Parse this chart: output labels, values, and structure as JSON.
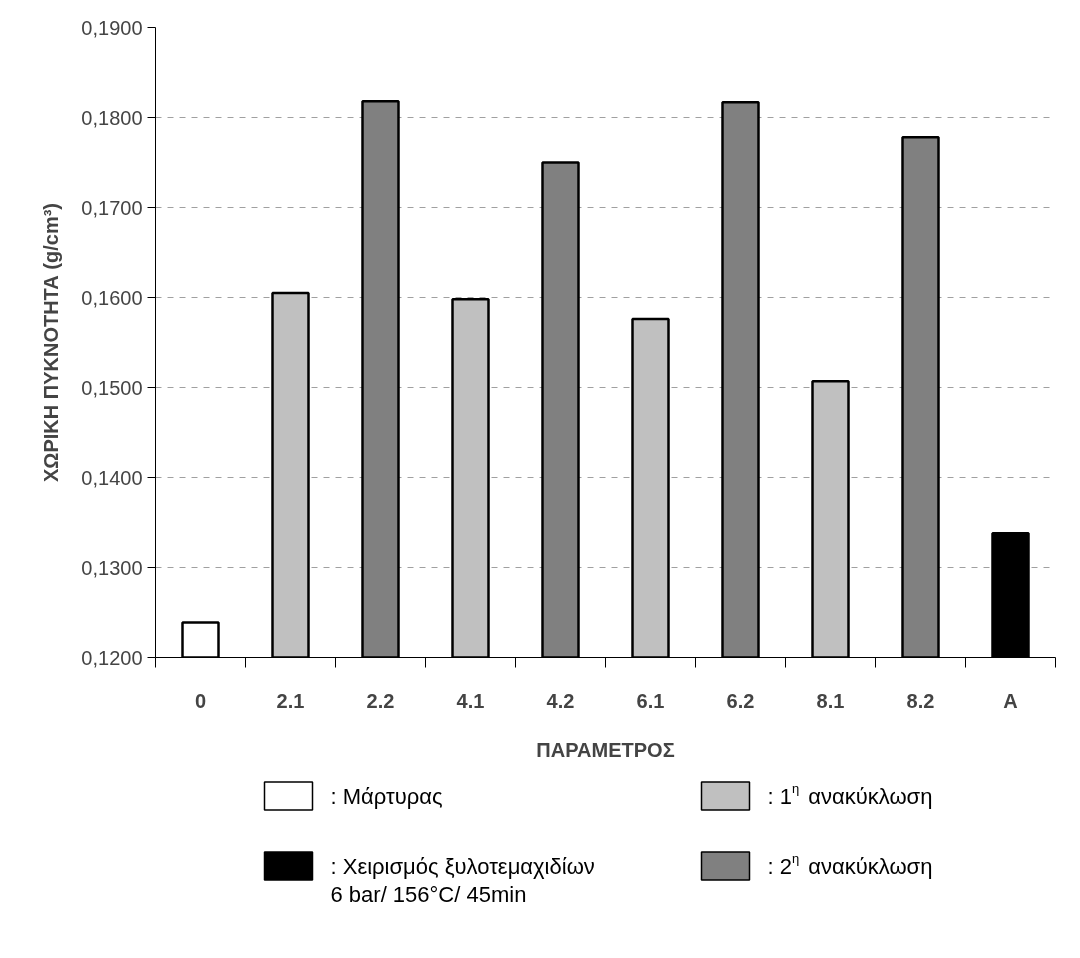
{
  "chart_data": {
    "type": "bar",
    "xlabel": "ΠΑΡΑΜΕΤΡΟΣ",
    "ylabel": "ΧΩΡΙΚΗ ΠΥΚΝΟΤΗΤΑ (g/cm³)",
    "categories": [
      "0",
      "2.1",
      "2.2",
      "4.1",
      "4.2",
      "6.1",
      "6.2",
      "8.1",
      "8.2",
      "A"
    ],
    "series": [
      {
        "name": ": Μάρτυρας",
        "color": "#ffffff",
        "values": [
          0.1239,
          null,
          null,
          null,
          null,
          null,
          null,
          null,
          null,
          null
        ]
      },
      {
        "name": ": 1$^{η}$ ανακύκλωση",
        "color": "#c0c0c0",
        "values": [
          null,
          0.1605,
          null,
          0.1598,
          null,
          0.1576,
          null,
          0.1507,
          null,
          null
        ]
      },
      {
        "name": ": Χειρισμός ξυλοτεμαχιδίων\n6 bar/ 156°C/ 45min",
        "color": "#000000",
        "values": [
          null,
          null,
          null,
          null,
          null,
          null,
          null,
          null,
          null,
          0.1338
        ]
      },
      {
        "name": ": 2$^{η}$ ανακύκλωση",
        "color": "#808080",
        "values": [
          null,
          null,
          0.1818,
          null,
          0.175,
          null,
          0.1817,
          null,
          0.1778,
          null
        ]
      }
    ],
    "ylim": [
      0.12,
      0.19
    ],
    "yticks": [
      {
        "value": 0.12,
        "label": "0,1200"
      },
      {
        "value": 0.13,
        "label": "0,1300"
      },
      {
        "value": 0.14,
        "label": "0,1400"
      },
      {
        "value": 0.15,
        "label": "0,1500"
      },
      {
        "value": 0.16,
        "label": "0,1600"
      },
      {
        "value": 0.17,
        "label": "0,1700"
      },
      {
        "value": 0.18,
        "label": "0,1800"
      },
      {
        "value": 0.19,
        "label": "0,1900"
      }
    ],
    "grid": "y",
    "legend": "bottom"
  }
}
